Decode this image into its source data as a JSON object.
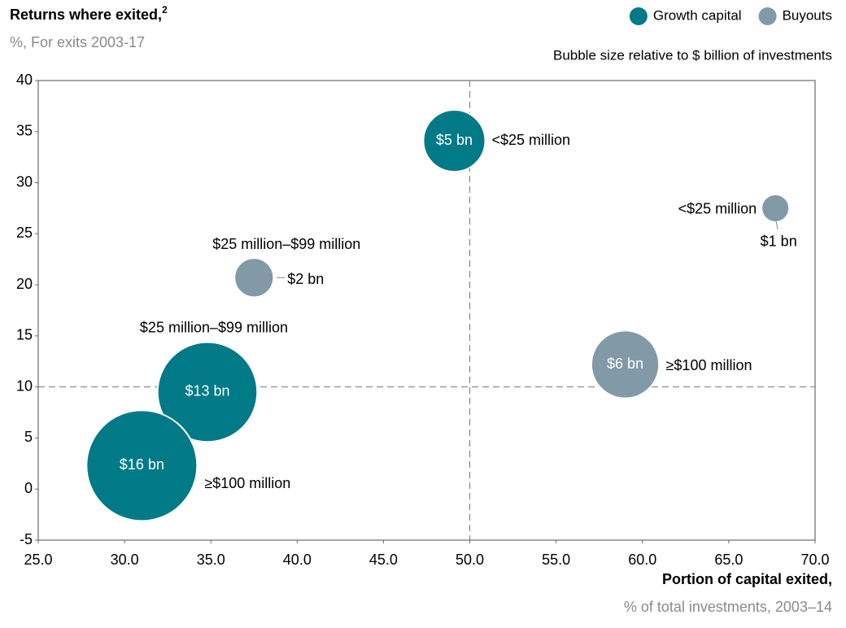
{
  "chart_data": {
    "type": "bubble",
    "title": "Returns where exited,",
    "title_footnote": "2",
    "subtitle": "%, For exits 2003-17",
    "size_note": "Bubble size relative to $ billion of investments",
    "x_label": "Portion of capital exited,",
    "x_sublabel": "% of total investments, 2003–14",
    "xlim": [
      25,
      70
    ],
    "xticks": [
      {
        "value": 25,
        "label": "25.0"
      },
      {
        "value": 30,
        "label": "30.0"
      },
      {
        "value": 35,
        "label": "35.0"
      },
      {
        "value": 40,
        "label": "40.0"
      },
      {
        "value": 45,
        "label": "45.0"
      },
      {
        "value": 50,
        "label": "50.0"
      },
      {
        "value": 55,
        "label": "55.0"
      },
      {
        "value": 60,
        "label": "60.0"
      },
      {
        "value": 65,
        "label": "65.0"
      },
      {
        "value": 70,
        "label": "70.0"
      }
    ],
    "ylim": [
      -5,
      40
    ],
    "yticks": [
      -5,
      0,
      5,
      10,
      15,
      20,
      25,
      30,
      35,
      40
    ],
    "reference_lines": {
      "x": 50,
      "y": 10
    },
    "legend": "top-right",
    "series": [
      {
        "name": "Growth capital",
        "color": "#007a87",
        "x": [
          49.1,
          34.8,
          31.0
        ],
        "values": [
          34.1,
          9.5,
          2.3
        ],
        "sizes": [
          5,
          13,
          16
        ],
        "size_labels": [
          "$5 bn",
          "$13 bn",
          "$16 bn"
        ],
        "point_labels": [
          "<$25 million",
          "$25 million–$99 million",
          "≥$100 million"
        ]
      },
      {
        "name": "Buyouts",
        "color": "#8299a8",
        "x": [
          37.5,
          67.7,
          59.0
        ],
        "values": [
          20.7,
          27.5,
          12.2
        ],
        "sizes": [
          2,
          1,
          6
        ],
        "size_labels": [
          "$2 bn",
          "$1 bn",
          "$6 bn"
        ],
        "point_labels": [
          "$25 million–$99 million",
          "<$25 million",
          "≥$100 million"
        ]
      }
    ]
  }
}
